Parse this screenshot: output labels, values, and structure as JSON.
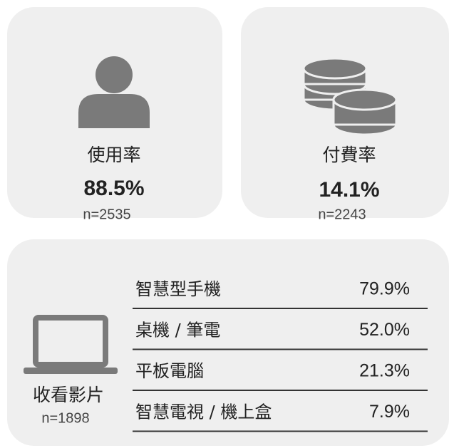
{
  "cards": [
    {
      "label": "使用率",
      "value": "88.5%",
      "n": "n=2535"
    },
    {
      "label": "付費率",
      "value": "14.1%",
      "n": "n=2243"
    }
  ],
  "viewing": {
    "label": "收看影片",
    "n": "n=1898",
    "rows": [
      [
        "智慧型手機",
        "79.9%"
      ],
      [
        "桌機 / 筆電",
        "52.0%"
      ],
      [
        "平板電腦",
        "21.3%"
      ],
      [
        "智慧電視 / 機上盒",
        "7.9%"
      ]
    ]
  }
}
